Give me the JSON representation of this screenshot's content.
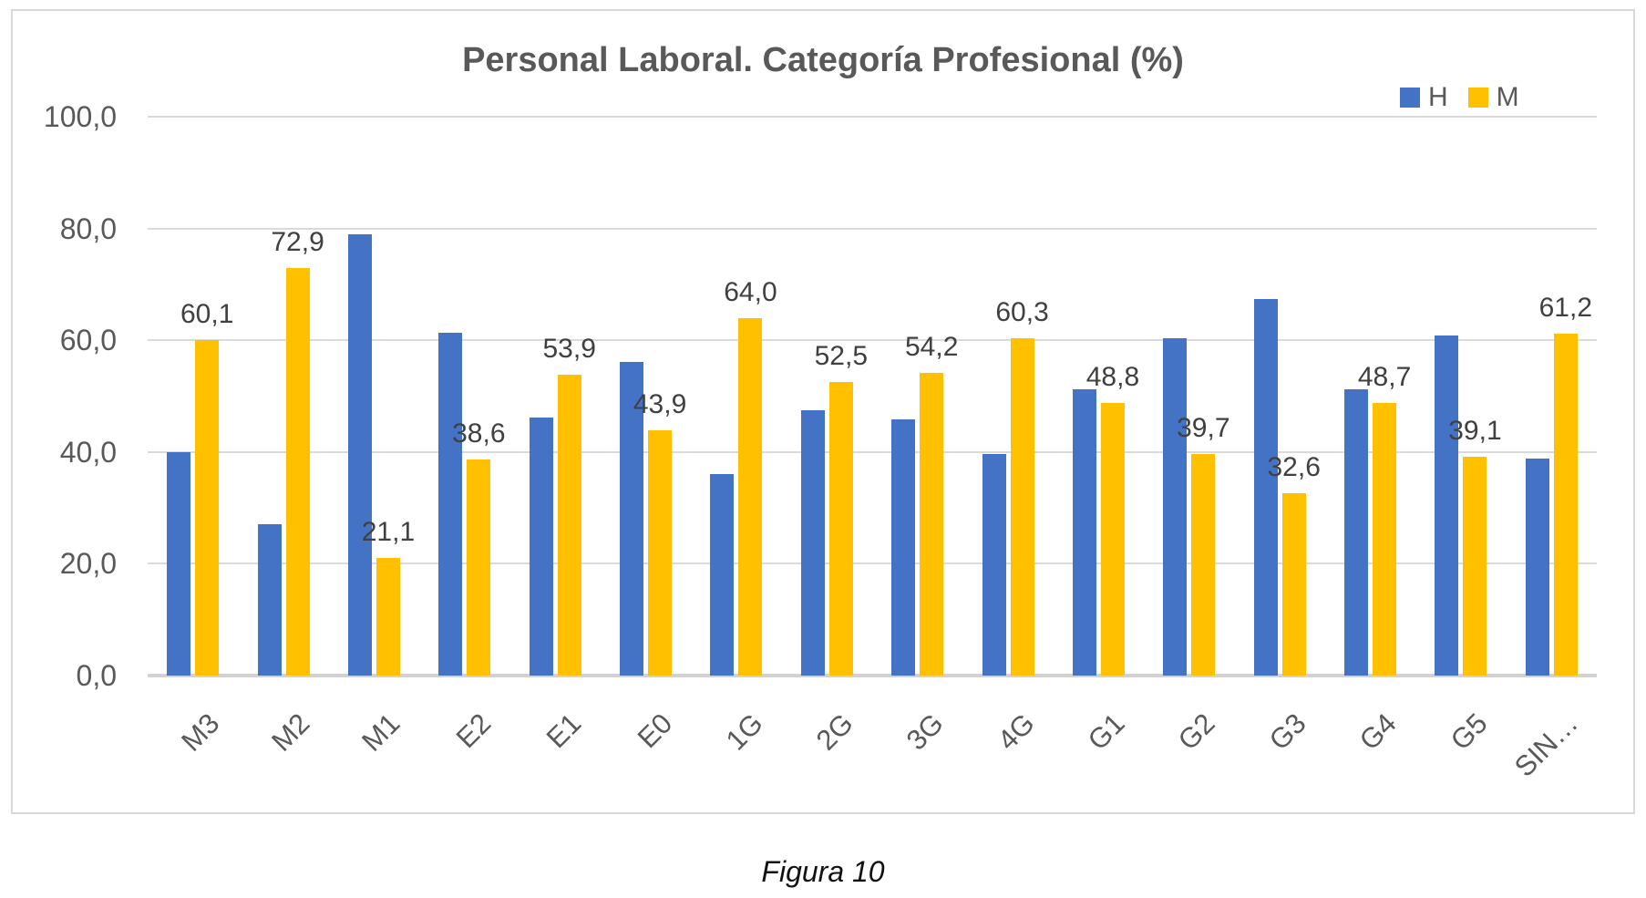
{
  "page": {
    "caption": "Figura 10"
  },
  "chart_data": {
    "type": "bar",
    "title": "Personal Laboral. Categoría Profesional (%)",
    "categories": [
      "M3",
      "M2",
      "M1",
      "E2",
      "E1",
      "E0",
      "1G",
      "2G",
      "3G",
      "4G",
      "G1",
      "G2",
      "G3",
      "G4",
      "G5",
      "SIN…"
    ],
    "series": [
      {
        "name": "H",
        "color": "#4472C4",
        "values": [
          39.9,
          27.1,
          78.9,
          61.4,
          46.1,
          56.1,
          36.0,
          47.5,
          45.8,
          39.7,
          51.2,
          60.3,
          67.4,
          51.3,
          60.9,
          38.8
        ],
        "data_labels_shown": false
      },
      {
        "name": "M",
        "color": "#FFC000",
        "values": [
          60.1,
          72.9,
          21.1,
          38.6,
          53.9,
          43.9,
          64.0,
          52.5,
          54.2,
          60.3,
          48.8,
          39.7,
          32.6,
          48.7,
          39.1,
          61.2
        ],
        "data_labels_shown": true,
        "data_labels": [
          "60,1",
          "72,9",
          "21,1",
          "38,6",
          "53,9",
          "43,9",
          "64,0",
          "52,5",
          "54,2",
          "60,3",
          "48,8",
          "39,7",
          "32,6",
          "48,7",
          "39,1",
          "61,2"
        ]
      }
    ],
    "xlabel": "",
    "ylabel": "",
    "ylim": [
      0,
      100
    ],
    "ytick_labels": [
      "100,0",
      "80,0",
      "60,0",
      "40,0",
      "20,0",
      "0,0"
    ],
    "grid": true,
    "x_tick_rotation": 45,
    "decimal_separator": ",",
    "legend_position": "top-right",
    "legend": [
      "H",
      "M"
    ]
  },
  "colors": {
    "series_h": "#4472C4",
    "series_m": "#FFC000",
    "gridline": "#DADADA",
    "axis_line": "#D2D2D2",
    "frame_border": "#D9D9D9",
    "title_text": "#595959",
    "tick_text": "#595959",
    "data_label_text": "#404040",
    "caption_text": "#111111"
  }
}
